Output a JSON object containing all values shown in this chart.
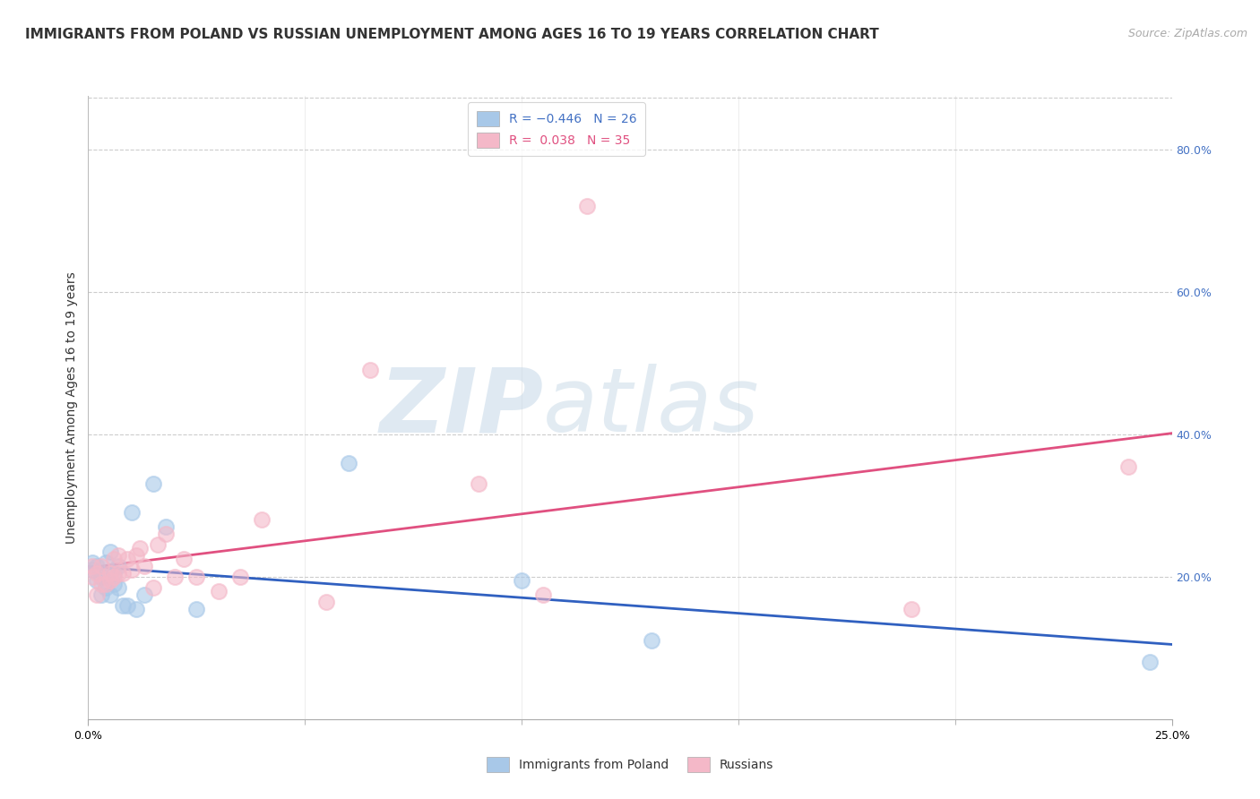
{
  "title": "IMMIGRANTS FROM POLAND VS RUSSIAN UNEMPLOYMENT AMONG AGES 16 TO 19 YEARS CORRELATION CHART",
  "source": "Source: ZipAtlas.com",
  "ylabel": "Unemployment Among Ages 16 to 19 years",
  "xlim": [
    0.0,
    0.25
  ],
  "ylim": [
    0.0,
    0.875
  ],
  "right_yticks": [
    0.2,
    0.4,
    0.6,
    0.8
  ],
  "right_yticklabels": [
    "20.0%",
    "40.0%",
    "60.0%",
    "80.0%"
  ],
  "xticks": [
    0.0,
    0.25
  ],
  "xticklabels": [
    "0.0%",
    "25.0%"
  ],
  "blue_color": "#a8c8e8",
  "pink_color": "#f4b8c8",
  "blue_line_color": "#3060c0",
  "pink_line_color": "#e05080",
  "watermark_zip": "ZIP",
  "watermark_atlas": "atlas",
  "grid_color": "#cccccc",
  "background_color": "#ffffff",
  "title_fontsize": 11,
  "axis_label_fontsize": 10,
  "tick_fontsize": 9,
  "legend_fontsize": 10,
  "source_fontsize": 9,
  "poland_x": [
    0.001,
    0.001,
    0.002,
    0.002,
    0.003,
    0.003,
    0.004,
    0.004,
    0.005,
    0.005,
    0.006,
    0.006,
    0.007,
    0.007,
    0.008,
    0.009,
    0.01,
    0.011,
    0.013,
    0.015,
    0.018,
    0.025,
    0.06,
    0.1,
    0.13,
    0.245
  ],
  "poland_y": [
    0.21,
    0.22,
    0.215,
    0.195,
    0.2,
    0.175,
    0.22,
    0.185,
    0.175,
    0.235,
    0.19,
    0.205,
    0.185,
    0.215,
    0.16,
    0.16,
    0.29,
    0.155,
    0.175,
    0.33,
    0.27,
    0.155,
    0.36,
    0.195,
    0.11,
    0.08
  ],
  "russian_x": [
    0.001,
    0.001,
    0.002,
    0.002,
    0.003,
    0.003,
    0.004,
    0.005,
    0.005,
    0.006,
    0.006,
    0.007,
    0.007,
    0.008,
    0.009,
    0.01,
    0.011,
    0.012,
    0.013,
    0.015,
    0.016,
    0.018,
    0.02,
    0.022,
    0.025,
    0.03,
    0.035,
    0.04,
    0.055,
    0.065,
    0.09,
    0.105,
    0.115,
    0.19,
    0.24
  ],
  "russian_y": [
    0.215,
    0.2,
    0.205,
    0.175,
    0.19,
    0.215,
    0.19,
    0.195,
    0.205,
    0.2,
    0.225,
    0.205,
    0.23,
    0.205,
    0.225,
    0.21,
    0.23,
    0.24,
    0.215,
    0.185,
    0.245,
    0.26,
    0.2,
    0.225,
    0.2,
    0.18,
    0.2,
    0.28,
    0.165,
    0.49,
    0.33,
    0.175,
    0.72,
    0.155,
    0.355
  ]
}
